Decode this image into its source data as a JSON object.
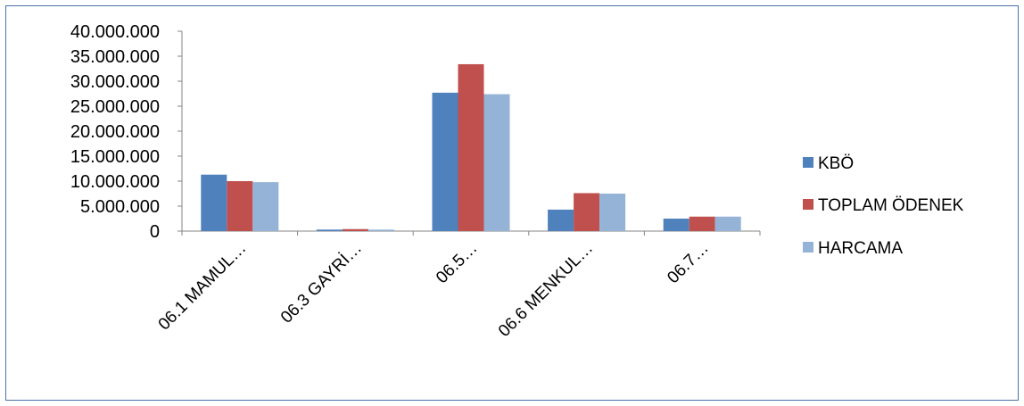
{
  "chart_data": {
    "type": "bar",
    "categories": [
      "06.1 MAMUL…",
      "06.3 GAYRİ…",
      "06.5…",
      "06.6 MENKUL…",
      "06.7…"
    ],
    "series": [
      {
        "name": "KBÖ",
        "color": "#4f81bd",
        "values": [
          11300000,
          300000,
          27700000,
          4300000,
          2500000
        ]
      },
      {
        "name": "TOPLAM ÖDENEK",
        "color": "#c0504d",
        "values": [
          10000000,
          400000,
          33400000,
          7600000,
          2900000
        ]
      },
      {
        "name": "HARCAMA",
        "color": "#95b3d7",
        "values": [
          9800000,
          300000,
          27400000,
          7500000,
          2900000
        ]
      }
    ],
    "yticks": [
      "0",
      "5.000.000",
      "10.000.000",
      "15.000.000",
      "20.000.000",
      "25.000.000",
      "30.000.000",
      "35.000.000",
      "40.000.000"
    ],
    "ylim": [
      0,
      40000000
    ],
    "legend": "right",
    "grid": false
  }
}
